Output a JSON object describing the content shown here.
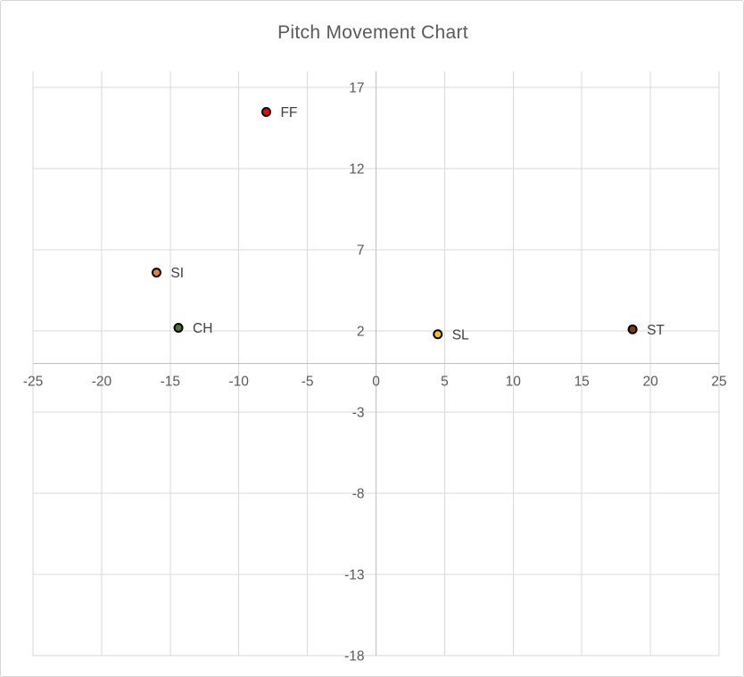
{
  "title": "Pitch Movement Chart",
  "colors": {
    "background": "#ffffff",
    "frame_border": "#d6d6d6",
    "gridline": "#d9d9d9",
    "axis_line": "#bfbfbf",
    "title_text": "#595959",
    "tick_label": "#595959",
    "point_label": "#404040",
    "point_border": "#000000"
  },
  "chart_data": {
    "type": "scatter",
    "title": "Pitch Movement Chart",
    "xlabel": "",
    "ylabel": "",
    "xlim": [
      -25,
      25
    ],
    "ylim": [
      -18,
      18
    ],
    "x_ticks": [
      -25,
      -20,
      -15,
      -10,
      -5,
      0,
      5,
      10,
      15,
      20,
      25
    ],
    "y_ticks": [
      17,
      12,
      7,
      2,
      -3,
      -8,
      -13,
      -18
    ],
    "grid": true,
    "legend_position": "none",
    "series": [
      {
        "name": "FF",
        "x": -8,
        "y": 15.5,
        "color": "#ff0000"
      },
      {
        "name": "SI",
        "x": -16,
        "y": 5.6,
        "color": "#ed7d31"
      },
      {
        "name": "CH",
        "x": -14.4,
        "y": 2.2,
        "color": "#4e7228"
      },
      {
        "name": "SL",
        "x": 4.5,
        "y": 1.8,
        "color": "#ffc000"
      },
      {
        "name": "ST",
        "x": 18.7,
        "y": 2.1,
        "color": "#843c0c"
      }
    ]
  }
}
